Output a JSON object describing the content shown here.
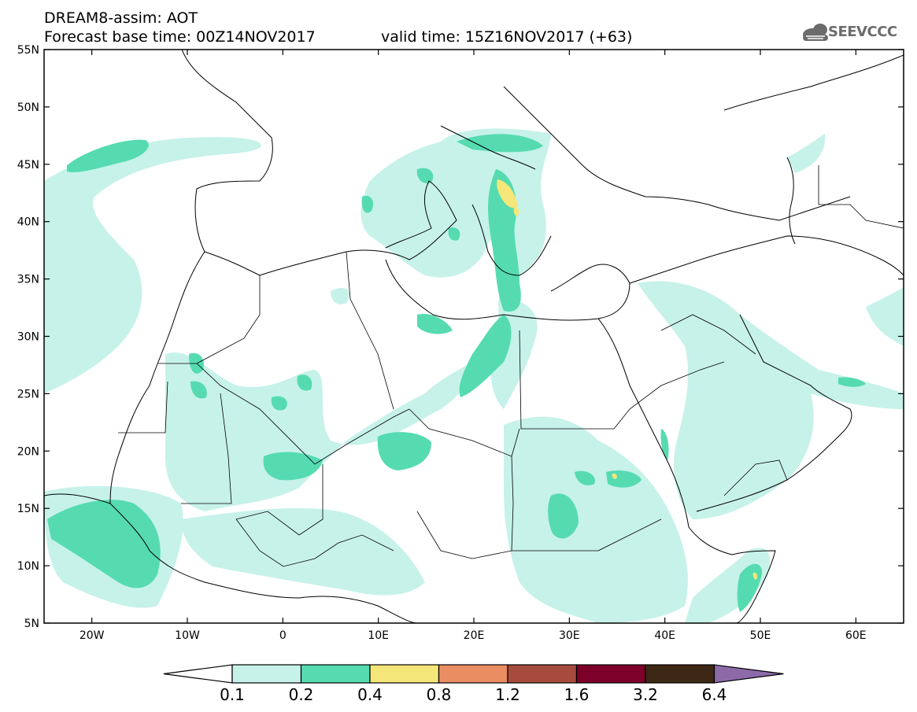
{
  "header": {
    "line1": "DREAM8-assim: AOT",
    "line2": "Forecast base time: 00Z14NOV2017",
    "line3": "valid time: 15Z16NOV2017 (+63)"
  },
  "logo": {
    "text": "SEEVCCC",
    "icon": "cloud-icon",
    "color": "#6c6c6c"
  },
  "map": {
    "lon_range": [
      -25,
      65
    ],
    "lat_range": [
      5,
      55
    ],
    "lat_ticks": [
      {
        "value": 55,
        "label": "55N"
      },
      {
        "value": 50,
        "label": "50N"
      },
      {
        "value": 45,
        "label": "45N"
      },
      {
        "value": 40,
        "label": "40N"
      },
      {
        "value": 35,
        "label": "35N"
      },
      {
        "value": 30,
        "label": "30N"
      },
      {
        "value": 25,
        "label": "25N"
      },
      {
        "value": 20,
        "label": "20N"
      },
      {
        "value": 15,
        "label": "15N"
      },
      {
        "value": 10,
        "label": "10N"
      },
      {
        "value": 5,
        "label": "5N"
      }
    ],
    "lon_ticks": [
      {
        "value": -20,
        "label": "20W"
      },
      {
        "value": -10,
        "label": "10W"
      },
      {
        "value": 0,
        "label": "0"
      },
      {
        "value": 10,
        "label": "10E"
      },
      {
        "value": 20,
        "label": "20E"
      },
      {
        "value": 30,
        "label": "30E"
      },
      {
        "value": 40,
        "label": "40E"
      },
      {
        "value": 50,
        "label": "50E"
      },
      {
        "value": 60,
        "label": "60E"
      }
    ]
  },
  "legend": {
    "levels": [
      "0.1",
      "0.2",
      "0.4",
      "0.8",
      "1.2",
      "1.6",
      "3.2",
      "6.4"
    ],
    "colors": [
      "#ffffff",
      "#c6f2ea",
      "#56dbb1",
      "#f5e67a",
      "#ea8d63",
      "#a64b3e",
      "#7c0029",
      "#3d2715",
      "#8c6aa8"
    ]
  }
}
